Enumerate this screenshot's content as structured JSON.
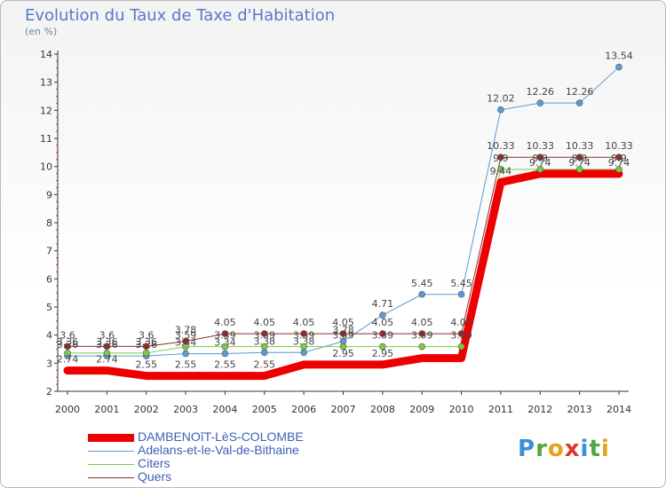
{
  "title": "Evolution du Taux de Taxe d'Habitation",
  "subtitle": "(en %)",
  "logo": {
    "letters": [
      {
        "ch": "P",
        "color": "#3d8fd6"
      },
      {
        "ch": "r",
        "color": "#4fa83a"
      },
      {
        "ch": "o",
        "color": "#e6a21a"
      },
      {
        "ch": "x",
        "color": "#d83a2e"
      },
      {
        "ch": "i",
        "color": "#3d8fd6"
      },
      {
        "ch": "t",
        "color": "#4fa83a"
      },
      {
        "ch": "i",
        "color": "#e6a21a"
      }
    ]
  },
  "chart_data": {
    "type": "line",
    "title": "Evolution du Taux de Taxe d'Habitation",
    "ylabel": "(en %)",
    "xlabel": "",
    "ylim": [
      2,
      14
    ],
    "yticks": [
      2,
      3,
      4,
      5,
      6,
      7,
      8,
      9,
      10,
      11,
      12,
      13,
      14
    ],
    "x": [
      "2000",
      "2001",
      "2002",
      "2003",
      "2004",
      "2005",
      "2006",
      "2007",
      "2008",
      "2009",
      "2010",
      "2011",
      "2012",
      "2013",
      "2014"
    ],
    "grid": false,
    "legend": "bottom-left",
    "series": [
      {
        "name": "DAMBENOîT-LèS-COLOMBE",
        "color": "#ee0000",
        "width": 9,
        "values": [
          2.74,
          2.74,
          2.55,
          2.55,
          2.55,
          2.55,
          2.95,
          2.95,
          2.95,
          3.18,
          3.18,
          9.44,
          9.74,
          9.74,
          9.74
        ],
        "labels": [
          "2.74",
          "2.74",
          "2.55",
          "2.55",
          "2.55",
          "2.55",
          "",
          "2.95",
          "2.95",
          "",
          "",
          "9.44",
          "9.74",
          "9.74",
          "9.74"
        ]
      },
      {
        "name": "Adelans-et-le-Val-de-Bithaine",
        "color": "#5b9bd5",
        "width": 1,
        "values": [
          3.26,
          3.26,
          3.26,
          3.34,
          3.34,
          3.38,
          3.38,
          3.78,
          4.71,
          5.45,
          5.45,
          12.02,
          12.26,
          12.26,
          13.54
        ],
        "labels": [
          "3.26",
          "3.26",
          "3.26",
          "3.34",
          "3.34",
          "3.38",
          "3.38",
          "3.78",
          "4.71",
          "5.45",
          "5.45",
          "12.02",
          "12.26",
          "12.26",
          "13.54"
        ]
      },
      {
        "name": "Citers",
        "color": "#77cc44",
        "width": 1,
        "values": [
          3.36,
          3.36,
          3.36,
          3.59,
          3.59,
          3.59,
          3.59,
          3.59,
          3.59,
          3.59,
          3.59,
          9.9,
          9.9,
          9.9,
          9.9
        ],
        "labels": [
          "3.36",
          "3.36",
          "3.36",
          "3.59",
          "3.59",
          "3.59",
          "3.59",
          "3.59",
          "3.59",
          "3.59",
          "3.59",
          "9.9",
          "9.9",
          "9.9",
          "9.9"
        ]
      },
      {
        "name": "Quers",
        "color": "#8b2e2e",
        "width": 1,
        "values": [
          3.6,
          3.6,
          3.6,
          3.78,
          4.05,
          4.05,
          4.05,
          4.05,
          4.05,
          4.05,
          4.05,
          10.33,
          10.33,
          10.33,
          10.33
        ],
        "labels": [
          "3.6",
          "3.6",
          "3.6",
          "3.78",
          "4.05",
          "4.05",
          "4.05",
          "4.05",
          "4.05",
          "4.05",
          "4.05",
          "10.33",
          "10.33",
          "10.33",
          "10.33"
        ]
      }
    ]
  }
}
